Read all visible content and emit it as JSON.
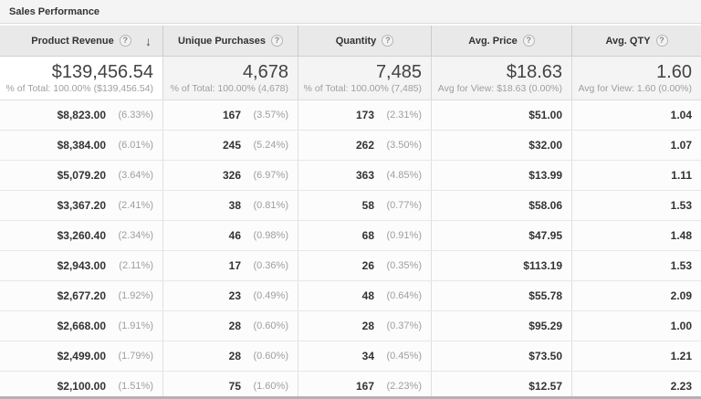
{
  "title": "Sales Performance",
  "help_icon_glyph": "?",
  "sort_arrow_glyph": "↓",
  "colors": {
    "header_bg": "#e9e9e9",
    "title_bg": "#f4f4f4",
    "summary_unsorted_bg": "#f4f4f4",
    "summary_sorted_bg": "#ffffff",
    "row_bg": "#fcfcfc",
    "value_text": "#333333",
    "muted_text": "#9e9e9e"
  },
  "columns": [
    {
      "id": "product_revenue",
      "label": "Product Revenue",
      "sorted": "descending"
    },
    {
      "id": "unique_purchases",
      "label": "Unique Purchases",
      "sorted": ""
    },
    {
      "id": "quantity",
      "label": "Quantity",
      "sorted": ""
    },
    {
      "id": "avg_price",
      "label": "Avg. Price",
      "sorted": ""
    },
    {
      "id": "avg_qty",
      "label": "Avg. QTY",
      "sorted": ""
    }
  ],
  "summary": {
    "product_revenue": {
      "value": "$139,456.54",
      "note": "% of Total: 100.00% ($139,456.54)"
    },
    "unique_purchases": {
      "value": "4,678",
      "note": "% of Total: 100.00% (4,678)"
    },
    "quantity": {
      "value": "7,485",
      "note": "% of Total: 100.00% (7,485)"
    },
    "avg_price": {
      "value": "$18.63",
      "note": "Avg for View: $18.63 (0.00%)"
    },
    "avg_qty": {
      "value": "1.60",
      "note": "Avg for View: 1.60 (0.00%)"
    }
  },
  "rows": [
    {
      "product_revenue": {
        "value": "$8,823.00",
        "pct": "(6.33%)"
      },
      "unique_purchases": {
        "value": "167",
        "pct": "(3.57%)"
      },
      "quantity": {
        "value": "173",
        "pct": "(2.31%)"
      },
      "avg_price": {
        "value": "$51.00"
      },
      "avg_qty": {
        "value": "1.04"
      }
    },
    {
      "product_revenue": {
        "value": "$8,384.00",
        "pct": "(6.01%)"
      },
      "unique_purchases": {
        "value": "245",
        "pct": "(5.24%)"
      },
      "quantity": {
        "value": "262",
        "pct": "(3.50%)"
      },
      "avg_price": {
        "value": "$32.00"
      },
      "avg_qty": {
        "value": "1.07"
      }
    },
    {
      "product_revenue": {
        "value": "$5,079.20",
        "pct": "(3.64%)"
      },
      "unique_purchases": {
        "value": "326",
        "pct": "(6.97%)"
      },
      "quantity": {
        "value": "363",
        "pct": "(4.85%)"
      },
      "avg_price": {
        "value": "$13.99"
      },
      "avg_qty": {
        "value": "1.11"
      }
    },
    {
      "product_revenue": {
        "value": "$3,367.20",
        "pct": "(2.41%)"
      },
      "unique_purchases": {
        "value": "38",
        "pct": "(0.81%)"
      },
      "quantity": {
        "value": "58",
        "pct": "(0.77%)"
      },
      "avg_price": {
        "value": "$58.06"
      },
      "avg_qty": {
        "value": "1.53"
      }
    },
    {
      "product_revenue": {
        "value": "$3,260.40",
        "pct": "(2.34%)"
      },
      "unique_purchases": {
        "value": "46",
        "pct": "(0.98%)"
      },
      "quantity": {
        "value": "68",
        "pct": "(0.91%)"
      },
      "avg_price": {
        "value": "$47.95"
      },
      "avg_qty": {
        "value": "1.48"
      }
    },
    {
      "product_revenue": {
        "value": "$2,943.00",
        "pct": "(2.11%)"
      },
      "unique_purchases": {
        "value": "17",
        "pct": "(0.36%)"
      },
      "quantity": {
        "value": "26",
        "pct": "(0.35%)"
      },
      "avg_price": {
        "value": "$113.19"
      },
      "avg_qty": {
        "value": "1.53"
      }
    },
    {
      "product_revenue": {
        "value": "$2,677.20",
        "pct": "(1.92%)"
      },
      "unique_purchases": {
        "value": "23",
        "pct": "(0.49%)"
      },
      "quantity": {
        "value": "48",
        "pct": "(0.64%)"
      },
      "avg_price": {
        "value": "$55.78"
      },
      "avg_qty": {
        "value": "2.09"
      }
    },
    {
      "product_revenue": {
        "value": "$2,668.00",
        "pct": "(1.91%)"
      },
      "unique_purchases": {
        "value": "28",
        "pct": "(0.60%)"
      },
      "quantity": {
        "value": "28",
        "pct": "(0.37%)"
      },
      "avg_price": {
        "value": "$95.29"
      },
      "avg_qty": {
        "value": "1.00"
      }
    },
    {
      "product_revenue": {
        "value": "$2,499.00",
        "pct": "(1.79%)"
      },
      "unique_purchases": {
        "value": "28",
        "pct": "(0.60%)"
      },
      "quantity": {
        "value": "34",
        "pct": "(0.45%)"
      },
      "avg_price": {
        "value": "$73.50"
      },
      "avg_qty": {
        "value": "1.21"
      }
    },
    {
      "product_revenue": {
        "value": "$2,100.00",
        "pct": "(1.51%)"
      },
      "unique_purchases": {
        "value": "75",
        "pct": "(1.60%)"
      },
      "quantity": {
        "value": "167",
        "pct": "(2.23%)"
      },
      "avg_price": {
        "value": "$12.57"
      },
      "avg_qty": {
        "value": "2.23"
      }
    }
  ]
}
